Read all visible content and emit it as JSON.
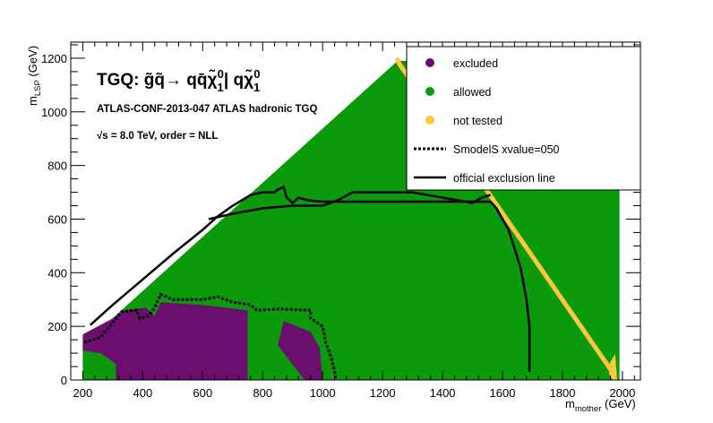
{
  "chart_data": {
    "type": "scatter",
    "title": {
      "main": "TGQ:  g̃q̃→ qq̄χ̃",
      "main_sub": "1",
      "main_sup": "0",
      "main_tail": "| qχ̃",
      "tail_sub": "1",
      "tail_sup": "0"
    },
    "analysis_label": "ATLAS-CONF-2013-047  ATLAS hadronic TGQ",
    "energy_label": "√s =  8.0 TeV, order =  NLL",
    "xlabel": {
      "main": "m",
      "sub": "mother",
      "tail": " (GeV)"
    },
    "ylabel": {
      "main": "m",
      "sub": "LSP",
      "tail": " (GeV)"
    },
    "xlim": [
      160,
      2060
    ],
    "ylim": [
      0,
      1260
    ],
    "xticks": [
      200,
      400,
      600,
      800,
      1000,
      1200,
      1400,
      1600,
      1800,
      2000
    ],
    "yticks": [
      0,
      200,
      400,
      600,
      800,
      1000,
      1200
    ],
    "xtick_labels": [
      "200",
      "400",
      "600",
      "800",
      "1000",
      "1200",
      "1400",
      "1600",
      "1800",
      "2000"
    ],
    "ytick_labels": [
      "0",
      "200",
      "400",
      "600",
      "800",
      "1000",
      "1200"
    ],
    "colors": {
      "excluded": "#6a0f6e",
      "allowed": "#0b9a0b",
      "not_tested": "#ffc83c"
    },
    "legend": {
      "placement": "top-right",
      "entries": [
        {
          "label": "excluded",
          "marker": "dot",
          "color": "#6a0f6e"
        },
        {
          "label": "allowed",
          "marker": "dot",
          "color": "#0b9a0b"
        },
        {
          "label": "not tested",
          "marker": "dot",
          "color": "#ffc83c"
        },
        {
          "label": "SmodelS xvalue=050",
          "marker": "dashed-line",
          "color": "#000000"
        },
        {
          "label": " official exclusion line",
          "marker": "solid-line",
          "color": "#000000"
        }
      ]
    },
    "regions": {
      "allowed_envelope": [
        [
          200,
          0
        ],
        [
          1990,
          0
        ],
        [
          1990,
          1190
        ],
        [
          1250,
          1190
        ],
        [
          200,
          130
        ]
      ],
      "excluded": [
        [
          [
            310,
            0
          ],
          [
            750,
            0
          ],
          [
            750,
            260
          ],
          [
            600,
            280
          ],
          [
            460,
            290
          ],
          [
            440,
            240
          ],
          [
            410,
            270
          ],
          [
            340,
            260
          ],
          [
            300,
            230
          ],
          [
            200,
            170
          ],
          [
            200,
            110
          ],
          [
            260,
            100
          ],
          [
            310,
            60
          ]
        ],
        [
          [
            870,
            220
          ],
          [
            960,
            180
          ],
          [
            990,
            120
          ],
          [
            1000,
            0
          ],
          [
            940,
            0
          ],
          [
            850,
            130
          ]
        ]
      ],
      "not_tested": [
        [
          1250,
          1195
        ],
        [
          1255,
          1180
        ],
        [
          1960,
          40
        ],
        [
          1965,
          20
        ],
        [
          1975,
          0
        ],
        [
          1970,
          70
        ],
        [
          1965,
          60
        ]
      ]
    },
    "smodels_line": [
      [
        205,
        140
      ],
      [
        260,
        160
      ],
      [
        330,
        255
      ],
      [
        380,
        260
      ],
      [
        390,
        230
      ],
      [
        420,
        240
      ],
      [
        440,
        270
      ],
      [
        460,
        320
      ],
      [
        500,
        300
      ],
      [
        600,
        300
      ],
      [
        650,
        310
      ],
      [
        700,
        290
      ],
      [
        760,
        280
      ],
      [
        780,
        260
      ],
      [
        860,
        265
      ],
      [
        960,
        260
      ],
      [
        960,
        230
      ],
      [
        1000,
        200
      ],
      [
        1010,
        140
      ],
      [
        1030,
        80
      ],
      [
        1040,
        30
      ],
      [
        1045,
        0
      ]
    ],
    "official_line": [
      [
        225,
        205
      ],
      [
        300,
        280
      ],
      [
        400,
        375
      ],
      [
        500,
        470
      ],
      [
        600,
        560
      ],
      [
        650,
        610
      ],
      [
        700,
        650
      ],
      [
        760,
        690
      ],
      [
        800,
        700
      ],
      [
        840,
        700
      ],
      [
        850,
        710
      ],
      [
        870,
        720
      ],
      [
        880,
        680
      ],
      [
        900,
        660
      ],
      [
        920,
        680
      ],
      [
        950,
        670
      ],
      [
        1000,
        665
      ],
      [
        1100,
        665
      ],
      [
        1200,
        665
      ],
      [
        1300,
        665
      ],
      [
        1400,
        665
      ],
      [
        1500,
        665
      ],
      [
        1560,
        665
      ],
      [
        1580,
        640
      ],
      [
        1620,
        560
      ],
      [
        1660,
        420
      ],
      [
        1680,
        300
      ],
      [
        1690,
        200
      ],
      [
        1690,
        30
      ]
    ],
    "official_line_upper": [
      [
        620,
        600
      ],
      [
        700,
        620
      ],
      [
        800,
        640
      ],
      [
        900,
        650
      ],
      [
        1000,
        650
      ],
      [
        1050,
        670
      ],
      [
        1100,
        700
      ],
      [
        1200,
        700
      ],
      [
        1300,
        700
      ],
      [
        1400,
        680
      ],
      [
        1500,
        660
      ],
      [
        1530,
        680
      ],
      [
        1560,
        690
      ]
    ]
  }
}
